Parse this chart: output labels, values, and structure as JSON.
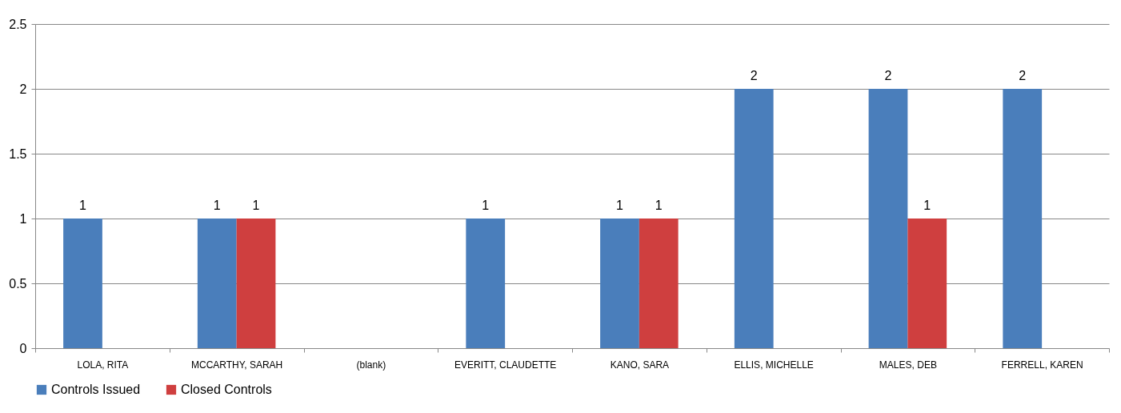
{
  "chart_data": {
    "type": "bar",
    "categories": [
      "LOLA, RITA",
      "MCCARTHY, SARAH",
      "(blank)",
      "EVERITT, CLAUDETTE",
      "KANO, SARA",
      "ELLIS, MICHELLE",
      "MALES, DEB",
      "FERRELL, KAREN"
    ],
    "series": [
      {
        "name": "Controls Issued",
        "color": "#4a7ebb",
        "values": [
          1,
          1,
          null,
          1,
          1,
          2,
          2,
          2
        ]
      },
      {
        "name": "Closed Controls",
        "color": "#cf3f3f",
        "values": [
          null,
          1,
          null,
          null,
          1,
          null,
          1,
          null
        ]
      }
    ],
    "ylim": [
      0,
      2.5
    ],
    "yticks": [
      0,
      0.5,
      1,
      1.5,
      2,
      2.5
    ],
    "grid": "y",
    "legend": "bottom",
    "data_labels": true
  }
}
